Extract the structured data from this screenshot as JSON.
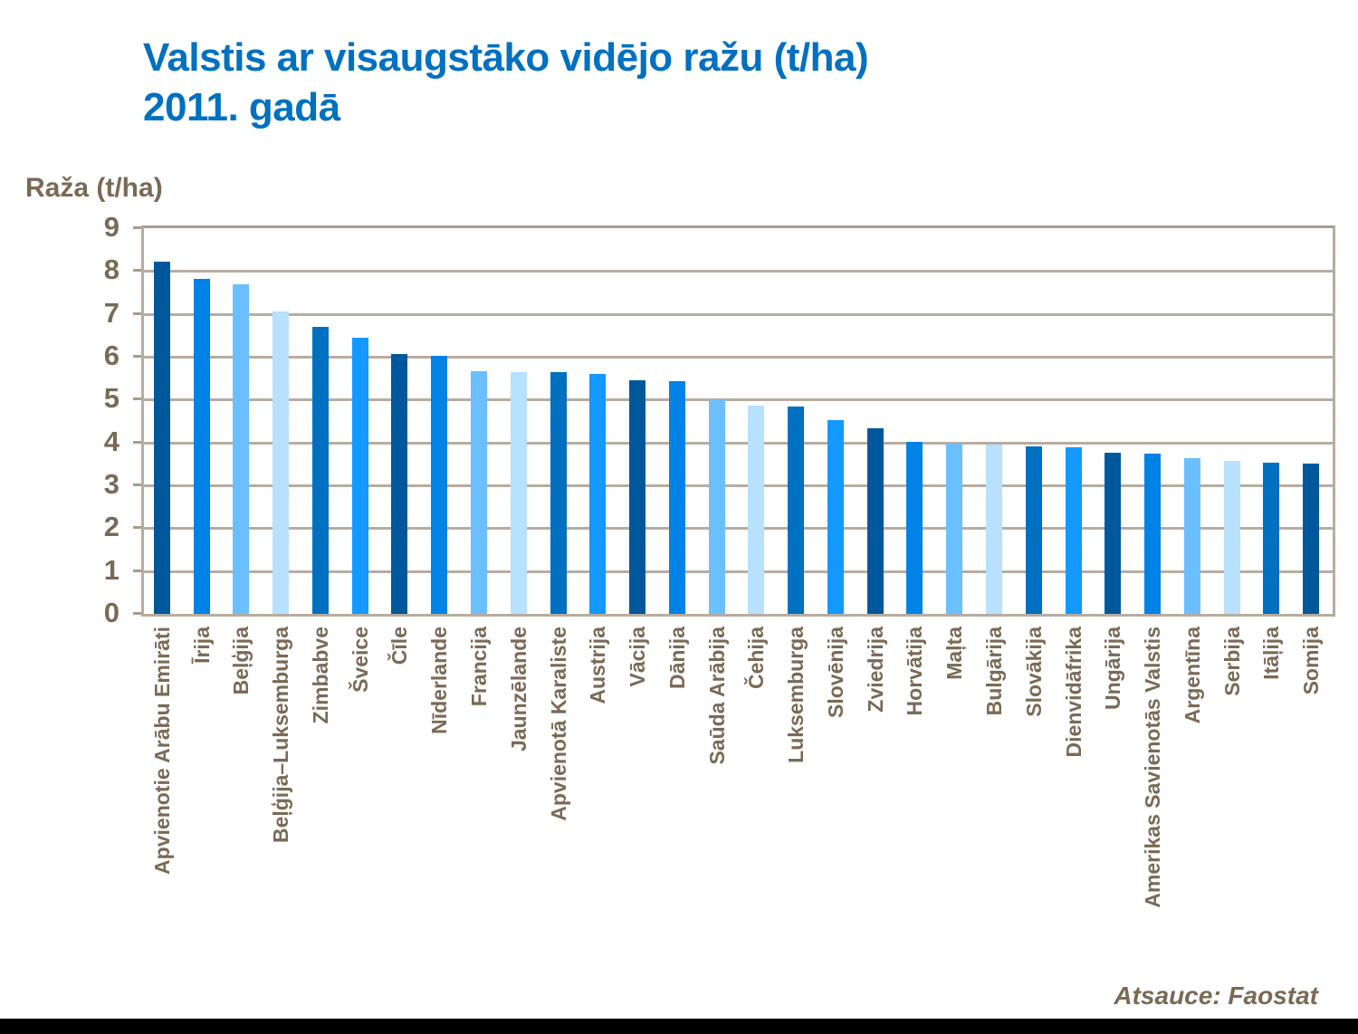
{
  "title": {
    "line1": "Valstis ar visaugstāko vidējo ražu (t/ha)",
    "line2": "2011. gadā"
  },
  "source": "Atsauce: Faostat",
  "colors": {
    "title": "#0070C0",
    "text": "#7A6A55",
    "grid": "#B8ACA0"
  },
  "chart_data": {
    "type": "bar",
    "title": "Valstis ar visaugstāko vidējo ražu (t/ha) 2011. gadā",
    "xlabel": "",
    "ylabel": "Raža (t/ha)",
    "ylim": [
      0,
      9
    ],
    "yticks": [
      0,
      1,
      2,
      3,
      4,
      5,
      6,
      7,
      8,
      9
    ],
    "grid": true,
    "legend": "none",
    "categories": [
      "Apvienotie Arābu Emirāti",
      "Īrija",
      "Beļģija",
      "Beļģija–Luksemburga",
      "Zimbabve",
      "Šveice",
      "Čīle",
      "Nīderlande",
      "Francija",
      "Jaunzēlande",
      "Apvienotā Karaliste",
      "Austrija",
      "Vācija",
      "Dānija",
      "Saūda Arābija",
      "Čehija",
      "Luksemburga",
      "Slovēnija",
      "Zviedrija",
      "Horvātija",
      "Maļta",
      "Bulgārija",
      "Slovākija",
      "Dienvidāfrika",
      "Ungārija",
      "Amerikas Savienotās Valstis",
      "Argentīna",
      "Serbija",
      "Itāļija",
      "Somija"
    ],
    "values": [
      8.21,
      7.81,
      7.68,
      7.05,
      6.69,
      6.45,
      6.07,
      6.03,
      5.67,
      5.65,
      5.65,
      5.59,
      5.46,
      5.42,
      4.99,
      4.87,
      4.83,
      4.53,
      4.34,
      4.02,
      3.98,
      3.95,
      3.9,
      3.88,
      3.77,
      3.73,
      3.64,
      3.58,
      3.52,
      3.5
    ],
    "bar_colors": [
      "#00589C",
      "#0082E6",
      "#6BBFFF",
      "#B8E0FF",
      "#0070C0",
      "#1399FF",
      "#00589C",
      "#0082E6",
      "#6BBFFF",
      "#B8E0FF",
      "#0070C0",
      "#1399FF",
      "#00589C",
      "#0082E6",
      "#6BBFFF",
      "#B8E0FF",
      "#0070C0",
      "#1399FF",
      "#00589C",
      "#0082E6",
      "#6BBFFF",
      "#B8E0FF",
      "#0070C0",
      "#1399FF",
      "#00589C",
      "#0082E6",
      "#6BBFFF",
      "#B8E0FF",
      "#0070C0",
      "#00589C"
    ]
  }
}
